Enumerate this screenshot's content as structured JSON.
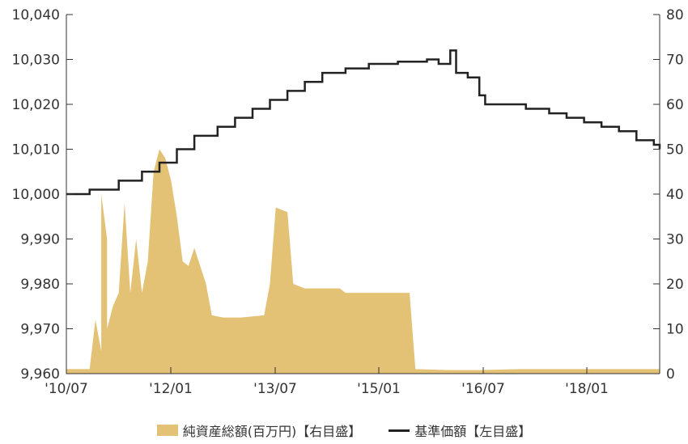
{
  "chart_data": {
    "type": "area",
    "colors": {
      "nav_area": "#e3c275",
      "price_line": "#222222",
      "axis": "#333333"
    },
    "x_ticks": [
      "'10/07",
      "'12/01",
      "'13/07",
      "'15/01",
      "'16/07",
      "'18/01"
    ],
    "y_left": {
      "ticks": [
        "9,960",
        "9,970",
        "9,980",
        "9,990",
        "10,000",
        "10,010",
        "10,020",
        "10,030",
        "10,040"
      ],
      "min": 9960,
      "max": 10040
    },
    "y_right": {
      "ticks": [
        "0",
        "10",
        "20",
        "30",
        "40",
        "50",
        "60",
        "70",
        "80"
      ],
      "min": 0,
      "max": 80
    },
    "legend": [
      "純資産総額(百万円)【右目盛】",
      "基準価額【左目盛】"
    ],
    "x_range": [
      "2010-07",
      "2019-01"
    ],
    "series": [
      {
        "name": "純資産総額(百万円)【右目盛】",
        "axis": "right",
        "style": "area",
        "points": [
          [
            "2010-07",
            1
          ],
          [
            "2010-11",
            1
          ],
          [
            "2010-12",
            12
          ],
          [
            "2011-01",
            5
          ],
          [
            "2011-01",
            40
          ],
          [
            "2011-02",
            30
          ],
          [
            "2011-02",
            10
          ],
          [
            "2011-03",
            15
          ],
          [
            "2011-04",
            18
          ],
          [
            "2011-05",
            38
          ],
          [
            "2011-06",
            18
          ],
          [
            "2011-07",
            30
          ],
          [
            "2011-08",
            18
          ],
          [
            "2011-09",
            25
          ],
          [
            "2011-10",
            45
          ],
          [
            "2011-11",
            50
          ],
          [
            "2011-12",
            48
          ],
          [
            "2012-01",
            43
          ],
          [
            "2012-02",
            35
          ],
          [
            "2012-03",
            25
          ],
          [
            "2012-04",
            24
          ],
          [
            "2012-05",
            28
          ],
          [
            "2012-06",
            24
          ],
          [
            "2012-07",
            20
          ],
          [
            "2012-08",
            13
          ],
          [
            "2012-10",
            12.5
          ],
          [
            "2013-01",
            12.5
          ],
          [
            "2013-05",
            13
          ],
          [
            "2013-06",
            20
          ],
          [
            "2013-07",
            37
          ],
          [
            "2013-09",
            36
          ],
          [
            "2013-10",
            20
          ],
          [
            "2013-12",
            19
          ],
          [
            "2014-06",
            19
          ],
          [
            "2014-07",
            18
          ],
          [
            "2015-06",
            18
          ],
          [
            "2015-07",
            1
          ],
          [
            "2016-01",
            0.8
          ],
          [
            "2016-06",
            0.8
          ],
          [
            "2017-01",
            1
          ],
          [
            "2018-06",
            1
          ],
          [
            "2019-01",
            1
          ]
        ]
      },
      {
        "name": "基準価額【左目盛】",
        "axis": "left",
        "style": "line",
        "points": [
          [
            "2010-07",
            10000
          ],
          [
            "2010-11",
            10001
          ],
          [
            "2011-04",
            10003
          ],
          [
            "2011-08",
            10005
          ],
          [
            "2011-11",
            10007
          ],
          [
            "2012-02",
            10010
          ],
          [
            "2012-05",
            10013
          ],
          [
            "2012-09",
            10015
          ],
          [
            "2012-12",
            10017
          ],
          [
            "2013-03",
            10019
          ],
          [
            "2013-06",
            10021
          ],
          [
            "2013-09",
            10023
          ],
          [
            "2013-12",
            10025
          ],
          [
            "2014-03",
            10027
          ],
          [
            "2014-07",
            10028
          ],
          [
            "2014-11",
            10029
          ],
          [
            "2015-04",
            10029.5
          ],
          [
            "2015-09",
            10030
          ],
          [
            "2015-11",
            10029
          ],
          [
            "2016-01",
            10032
          ],
          [
            "2016-02",
            10027
          ],
          [
            "2016-04",
            10026
          ],
          [
            "2016-06",
            10022
          ],
          [
            "2016-07",
            10020
          ],
          [
            "2016-11",
            10020
          ],
          [
            "2017-02",
            10019
          ],
          [
            "2017-06",
            10018
          ],
          [
            "2017-09",
            10017
          ],
          [
            "2017-12",
            10016
          ],
          [
            "2018-03",
            10015
          ],
          [
            "2018-06",
            10014
          ],
          [
            "2018-09",
            10012
          ],
          [
            "2018-12",
            10011
          ],
          [
            "2019-01",
            10010
          ]
        ]
      }
    ]
  }
}
